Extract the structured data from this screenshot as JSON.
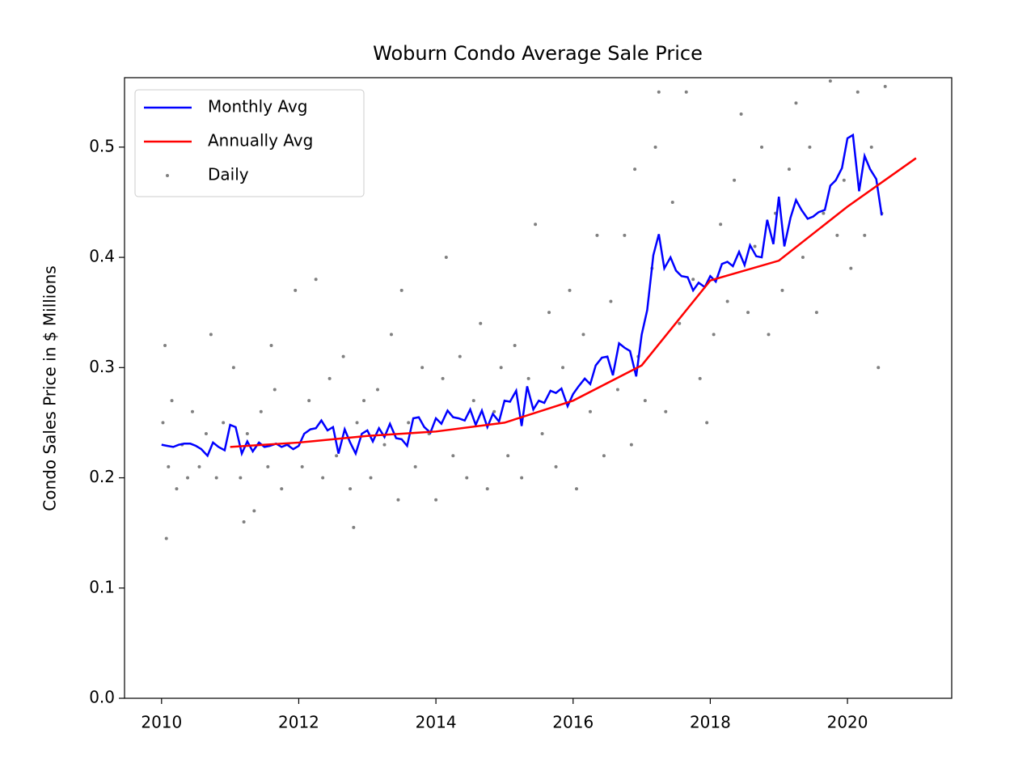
{
  "chart_data": {
    "type": "line",
    "title": "Woburn Condo Average Sale Price",
    "y_label": "Condo Sales Price in $ Millions",
    "xlim": [
      2009.46,
      2021.52
    ],
    "xticks": [
      2010,
      2012,
      2014,
      2016,
      2018,
      2020
    ],
    "ylim": [
      0,
      0.563
    ],
    "yticks": [
      {
        "value": 0,
        "label": "0.0"
      },
      0.1,
      0.2,
      0.3,
      0.4,
      0.5
    ],
    "grid": false,
    "legend": "upper left",
    "series": [
      {
        "name": "Monthly Avg",
        "type": "line",
        "color": "#0000ff",
        "x": [
          2010.0,
          2010.08,
          2010.17,
          2010.25,
          2010.33,
          2010.42,
          2010.5,
          2010.58,
          2010.67,
          2010.75,
          2010.83,
          2010.92,
          2011.0,
          2011.08,
          2011.17,
          2011.25,
          2011.33,
          2011.42,
          2011.5,
          2011.58,
          2011.67,
          2011.75,
          2011.83,
          2011.92,
          2012.0,
          2012.08,
          2012.17,
          2012.25,
          2012.33,
          2012.42,
          2012.5,
          2012.58,
          2012.67,
          2012.75,
          2012.83,
          2012.92,
          2013.0,
          2013.08,
          2013.17,
          2013.25,
          2013.33,
          2013.42,
          2013.5,
          2013.58,
          2013.67,
          2013.75,
          2013.83,
          2013.92,
          2014.0,
          2014.08,
          2014.17,
          2014.25,
          2014.33,
          2014.42,
          2014.5,
          2014.58,
          2014.67,
          2014.75,
          2014.83,
          2014.92,
          2015.0,
          2015.08,
          2015.17,
          2015.25,
          2015.33,
          2015.42,
          2015.5,
          2015.58,
          2015.67,
          2015.75,
          2015.83,
          2015.92,
          2016.0,
          2016.08,
          2016.17,
          2016.25,
          2016.33,
          2016.42,
          2016.5,
          2016.58,
          2016.67,
          2016.75,
          2016.83,
          2016.92,
          2017.0,
          2017.08,
          2017.17,
          2017.25,
          2017.33,
          2017.42,
          2017.5,
          2017.58,
          2017.67,
          2017.75,
          2017.83,
          2017.92,
          2018.0,
          2018.08,
          2018.17,
          2018.25,
          2018.33,
          2018.42,
          2018.5,
          2018.58,
          2018.67,
          2018.75,
          2018.83,
          2018.92,
          2019.0,
          2019.08,
          2019.17,
          2019.25,
          2019.33,
          2019.42,
          2019.5,
          2019.58,
          2019.67,
          2019.75,
          2019.83,
          2019.92,
          2020.0,
          2020.08,
          2020.17,
          2020.25,
          2020.33,
          2020.42,
          2020.5
        ],
        "values": [
          0.23,
          0.229,
          0.228,
          0.23,
          0.231,
          0.231,
          0.229,
          0.226,
          0.22,
          0.232,
          0.228,
          0.225,
          0.248,
          0.246,
          0.222,
          0.233,
          0.224,
          0.232,
          0.228,
          0.229,
          0.231,
          0.228,
          0.23,
          0.226,
          0.229,
          0.24,
          0.244,
          0.245,
          0.252,
          0.243,
          0.246,
          0.222,
          0.244,
          0.232,
          0.222,
          0.24,
          0.243,
          0.233,
          0.245,
          0.237,
          0.249,
          0.236,
          0.235,
          0.229,
          0.254,
          0.255,
          0.246,
          0.241,
          0.254,
          0.249,
          0.261,
          0.255,
          0.254,
          0.252,
          0.262,
          0.248,
          0.261,
          0.246,
          0.258,
          0.251,
          0.27,
          0.269,
          0.279,
          0.247,
          0.283,
          0.262,
          0.27,
          0.268,
          0.279,
          0.277,
          0.281,
          0.265,
          0.276,
          0.283,
          0.29,
          0.285,
          0.302,
          0.309,
          0.31,
          0.293,
          0.322,
          0.318,
          0.315,
          0.292,
          0.33,
          0.352,
          0.402,
          0.421,
          0.39,
          0.4,
          0.388,
          0.383,
          0.382,
          0.37,
          0.377,
          0.373,
          0.383,
          0.378,
          0.394,
          0.396,
          0.392,
          0.405,
          0.393,
          0.411,
          0.401,
          0.4,
          0.434,
          0.412,
          0.455,
          0.41,
          0.436,
          0.452,
          0.443,
          0.435,
          0.437,
          0.441,
          0.443,
          0.465,
          0.47,
          0.481,
          0.508,
          0.511,
          0.46,
          0.492,
          0.48,
          0.471,
          0.438
        ]
      },
      {
        "name": "Annually Avg",
        "type": "line",
        "color": "#ff0000",
        "x": [
          2011,
          2012,
          2013,
          2014,
          2015,
          2016,
          2017,
          2018,
          2019,
          2020,
          2021
        ],
        "values": [
          0.228,
          0.232,
          0.238,
          0.242,
          0.25,
          0.27,
          0.302,
          0.379,
          0.397,
          0.446,
          0.49
        ]
      },
      {
        "name": "Daily",
        "type": "scatter",
        "color": "#808080",
        "x": [
          2010.02,
          2010.1,
          2010.15,
          2010.22,
          2010.3,
          2010.38,
          2010.45,
          2010.55,
          2010.65,
          2010.72,
          2010.8,
          2010.9,
          2010.07,
          2010.05,
          2011.05,
          2011.15,
          2011.25,
          2011.35,
          2011.45,
          2011.55,
          2011.65,
          2011.75,
          2011.85,
          2011.95,
          2011.6,
          2011.2,
          2012.05,
          2012.15,
          2012.25,
          2012.35,
          2012.45,
          2012.55,
          2012.65,
          2012.75,
          2012.85,
          2012.8,
          2012.95,
          2013.05,
          2013.15,
          2013.25,
          2013.35,
          2013.45,
          2013.5,
          2013.6,
          2013.7,
          2013.8,
          2013.9,
          2014.0,
          2014.1,
          2014.15,
          2014.25,
          2014.35,
          2014.45,
          2014.55,
          2014.65,
          2014.75,
          2014.85,
          2014.95,
          2015.05,
          2015.15,
          2015.25,
          2015.35,
          2015.45,
          2015.55,
          2015.65,
          2015.75,
          2015.85,
          2015.95,
          2016.05,
          2016.15,
          2016.25,
          2016.35,
          2016.45,
          2016.55,
          2016.65,
          2016.75,
          2016.85,
          2016.9,
          2016.95,
          2017.05,
          2017.15,
          2017.2,
          2017.25,
          2017.35,
          2017.45,
          2017.55,
          2017.65,
          2017.75,
          2017.85,
          2017.95,
          2018.05,
          2018.15,
          2018.25,
          2018.35,
          2018.45,
          2018.55,
          2018.65,
          2018.75,
          2018.85,
          2018.95,
          2019.05,
          2019.15,
          2019.25,
          2019.35,
          2019.45,
          2019.55,
          2019.65,
          2019.75,
          2019.85,
          2019.95,
          2020.05,
          2020.15,
          2020.25,
          2020.35,
          2020.45,
          2020.5,
          2020.55
        ],
        "values": [
          0.25,
          0.21,
          0.27,
          0.19,
          0.23,
          0.2,
          0.26,
          0.21,
          0.24,
          0.33,
          0.2,
          0.25,
          0.145,
          0.32,
          0.3,
          0.2,
          0.24,
          0.17,
          0.26,
          0.21,
          0.28,
          0.19,
          0.23,
          0.37,
          0.32,
          0.16,
          0.21,
          0.27,
          0.38,
          0.2,
          0.29,
          0.22,
          0.31,
          0.19,
          0.25,
          0.155,
          0.27,
          0.2,
          0.28,
          0.23,
          0.33,
          0.18,
          0.37,
          0.25,
          0.21,
          0.3,
          0.24,
          0.18,
          0.29,
          0.4,
          0.22,
          0.31,
          0.2,
          0.27,
          0.34,
          0.19,
          0.26,
          0.3,
          0.22,
          0.32,
          0.2,
          0.29,
          0.43,
          0.24,
          0.35,
          0.21,
          0.3,
          0.37,
          0.19,
          0.33,
          0.26,
          0.42,
          0.22,
          0.36,
          0.28,
          0.42,
          0.23,
          0.48,
          0.31,
          0.27,
          0.39,
          0.5,
          0.55,
          0.26,
          0.45,
          0.34,
          0.55,
          0.38,
          0.29,
          0.25,
          0.33,
          0.43,
          0.36,
          0.47,
          0.53,
          0.35,
          0.41,
          0.5,
          0.33,
          0.44,
          0.37,
          0.48,
          0.54,
          0.4,
          0.5,
          0.35,
          0.44,
          0.56,
          0.42,
          0.47,
          0.39,
          0.55,
          0.42,
          0.5,
          0.3,
          0.44,
          0.555
        ]
      }
    ]
  }
}
